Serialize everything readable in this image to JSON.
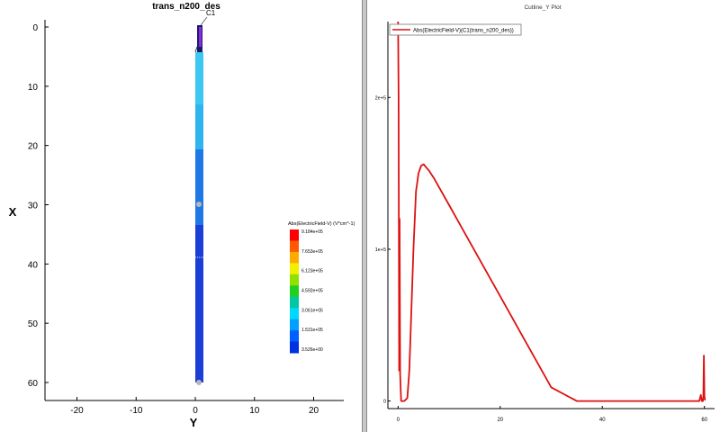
{
  "left_plot": {
    "title": "trans_n200_des",
    "contact_label": "C1",
    "x_axis_label": "Y",
    "y_axis_label": "X",
    "x_ticks": [
      "-20",
      "-10",
      "0",
      "10",
      "20"
    ],
    "y_ticks": [
      "0",
      "10",
      "20",
      "30",
      "40",
      "50",
      "60"
    ],
    "legend": {
      "title": "Abs(ElectricField-V) (V*cm^-1)",
      "labels": [
        "9.184e+05",
        "7.653e+05",
        "6.123e+05",
        "4.592e+05",
        "3.061e+05",
        "1.531e+05",
        "3.526e+00"
      ],
      "colors": [
        "#ff0000",
        "#ff5a00",
        "#ffaa00",
        "#f0f000",
        "#90e000",
        "#20d020",
        "#00c8a0",
        "#00d8ff",
        "#00a0ff",
        "#0060ff",
        "#0030e0"
      ]
    },
    "device_colors": {
      "top": "#3cc8f0",
      "upper": "#30b4ee",
      "mid": "#1e78e6",
      "lower": "#1a3ed6",
      "contact": "#8a2be2"
    }
  },
  "right_plot": {
    "title": "Cutline_Y Plot",
    "y_ticks": [
      "0",
      "1e+5",
      "2e+5"
    ],
    "x_ticks": [
      "0",
      "20",
      "40",
      "60"
    ],
    "line_color": "#dd1111",
    "legend_label": "Abs(ElectricField-V)(C1(trans_n200_des))"
  },
  "chart_data": {
    "type": "line",
    "title": "Cutline_Y Plot",
    "xlabel": "",
    "ylabel": "",
    "xlim": [
      -2,
      62
    ],
    "ylim": [
      -5000,
      250000
    ],
    "series": [
      {
        "name": "Abs(ElectricField-V)(C1(trans_n200_des))",
        "x": [
          0.0,
          0.1,
          0.2,
          0.3,
          0.4,
          0.5,
          0.6,
          0.8,
          1.2,
          1.8,
          2.2,
          2.6,
          3.0,
          3.5,
          4.0,
          4.5,
          5.0,
          5.5,
          6.0,
          7.0,
          8.0,
          10.0,
          15.0,
          20.0,
          25.0,
          30.0,
          35.0,
          38.0,
          39.0,
          39.5,
          40.0,
          41.0,
          45.0,
          50.0,
          55.0,
          58.0,
          59.0,
          59.3,
          59.5,
          59.7,
          59.8,
          59.9,
          60.0,
          60.1,
          60.2
        ],
        "y": [
          250000,
          200000,
          20000,
          120000,
          18000,
          8000,
          0,
          0,
          0,
          2000,
          20000,
          60000,
          100000,
          138000,
          150000,
          155000,
          156000,
          154000,
          152000,
          147000,
          141000,
          129000,
          99000,
          69000,
          39000,
          9000,
          0,
          0,
          0,
          0,
          0,
          0,
          0,
          0,
          0,
          0,
          0,
          4000,
          0,
          0,
          3000,
          30000,
          3000,
          1000,
          500
        ]
      }
    ]
  }
}
